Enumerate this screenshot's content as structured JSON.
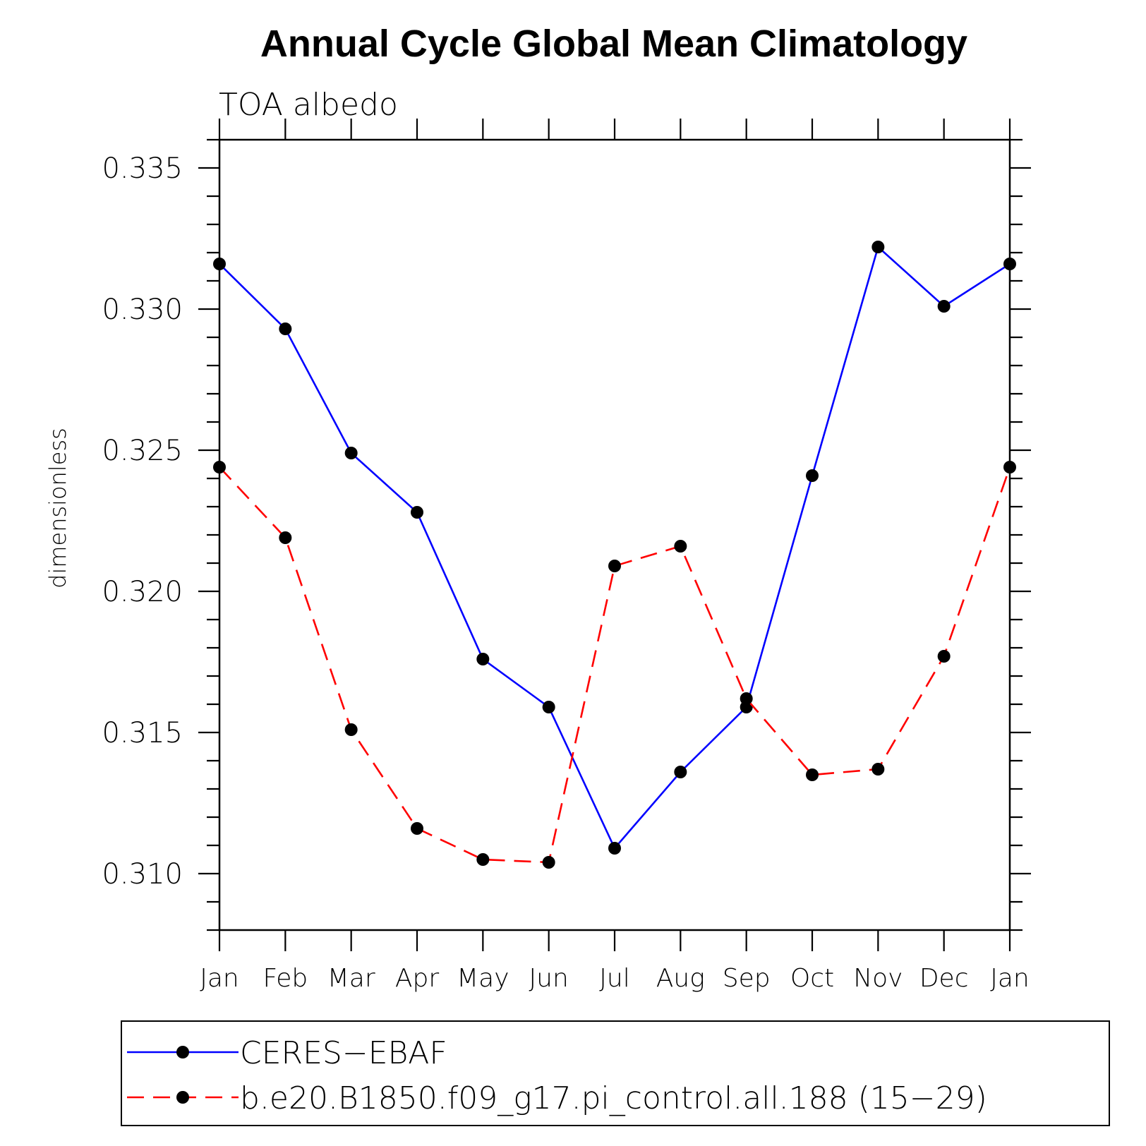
{
  "chart_data": {
    "type": "line",
    "title": "Annual Cycle Global Mean Climatology",
    "subtitle": "TOA  albedo",
    "xlabel": "",
    "ylabel": "dimensionless",
    "categories": [
      "Jan",
      "Feb",
      "Mar",
      "Apr",
      "May",
      "Jun",
      "Jul",
      "Aug",
      "Sep",
      "Oct",
      "Nov",
      "Dec",
      "Jan"
    ],
    "ylim": [
      0.308,
      0.336
    ],
    "yticks": [
      0.31,
      0.315,
      0.32,
      0.325,
      0.33,
      0.335
    ],
    "ytick_labels": [
      "0.310",
      "0.315",
      "0.320",
      "0.325",
      "0.330",
      "0.335"
    ],
    "series": [
      {
        "name": "CERES−EBAF",
        "color": "#0000ff",
        "style": "solid",
        "marker": "dot",
        "values": [
          0.3316,
          0.3293,
          0.3249,
          0.3228,
          0.3176,
          0.3159,
          0.3109,
          0.3136,
          0.3159,
          0.3241,
          0.3322,
          0.3301,
          0.3316
        ]
      },
      {
        "name": "b.e20.B1850.f09_g17.pi_control.all.188 (15−29)",
        "color": "#ff0000",
        "style": "dashed",
        "marker": "dot",
        "values": [
          0.3244,
          0.3219,
          0.3151,
          0.3116,
          0.3105,
          0.3104,
          0.3209,
          0.3216,
          0.3162,
          0.3135,
          0.3137,
          0.3177,
          0.3244
        ]
      }
    ],
    "legend_position": "bottom"
  }
}
